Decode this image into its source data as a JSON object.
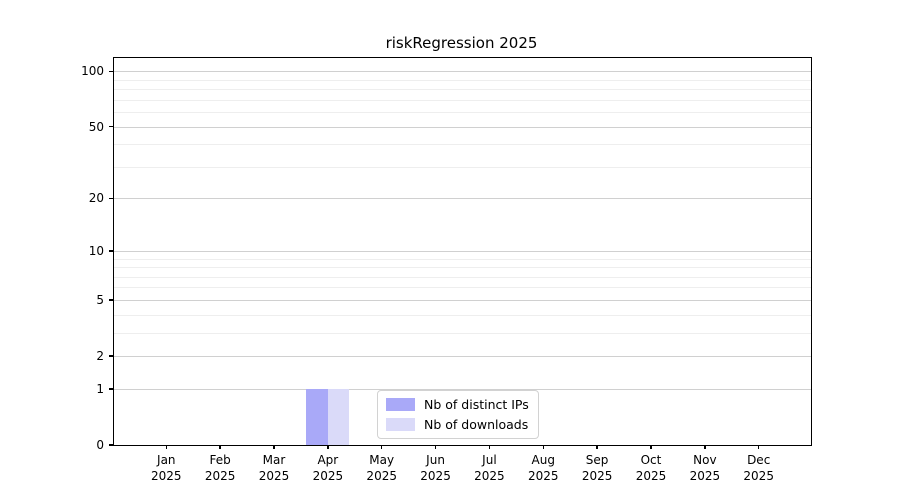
{
  "chart_data": {
    "type": "bar",
    "title": "riskRegression 2025",
    "categories": [
      "Jan",
      "Feb",
      "Mar",
      "Apr",
      "May",
      "Jun",
      "Jul",
      "Aug",
      "Sep",
      "Oct",
      "Nov",
      "Dec"
    ],
    "x_sublabel": "2025",
    "series": [
      {
        "name": "Nb of distinct IPs",
        "color": "#a9a9f8",
        "values": [
          0,
          0,
          0,
          1,
          0,
          0,
          0,
          0,
          0,
          0,
          0,
          0
        ]
      },
      {
        "name": "Nb of downloads",
        "color": "#dadaf9",
        "values": [
          0,
          0,
          0,
          1,
          0,
          0,
          0,
          0,
          0,
          0,
          0,
          0
        ]
      }
    ],
    "yscale": "log1p",
    "ylim": [
      0,
      118
    ],
    "yticks": [
      0,
      1,
      2,
      5,
      10,
      20,
      50,
      100
    ],
    "yticks_minor": [
      3,
      4,
      6,
      7,
      8,
      9,
      30,
      40,
      60,
      70,
      80,
      90
    ],
    "grid": true,
    "legend_position": "lower center-right"
  },
  "colors": {
    "background": "#ffffff",
    "spine": "#000000",
    "text": "#000000",
    "major_grid": "#d0d0d0",
    "minor_grid": "#eeeeee",
    "series_1": "#a9a9f8",
    "series_2": "#dadaf9"
  }
}
